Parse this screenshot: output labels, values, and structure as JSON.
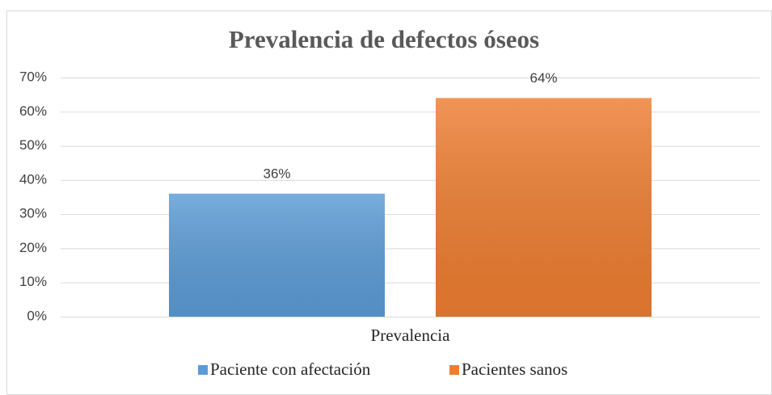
{
  "chart_data": {
    "type": "bar",
    "title": "Prevalencia de defectos óseos",
    "categories": [
      "Prevalencia"
    ],
    "series": [
      {
        "name": "Paciente con afectación",
        "color": "#5b9bd5",
        "values": [
          36
        ],
        "value_labels": [
          "36%"
        ]
      },
      {
        "name": "Pacientes sanos",
        "color": "#ed7d31",
        "values": [
          64
        ],
        "value_labels": [
          "64%"
        ]
      }
    ],
    "ylim": [
      0,
      70
    ],
    "yticks": [
      {
        "value": 0,
        "label": "0%"
      },
      {
        "value": 10,
        "label": "10%"
      },
      {
        "value": 20,
        "label": "20%"
      },
      {
        "value": 30,
        "label": "30%"
      },
      {
        "value": 40,
        "label": "40%"
      },
      {
        "value": 50,
        "label": "50%"
      },
      {
        "value": 60,
        "label": "60%"
      },
      {
        "value": 70,
        "label": "70%"
      }
    ],
    "grid": true,
    "legend": "bottom"
  }
}
